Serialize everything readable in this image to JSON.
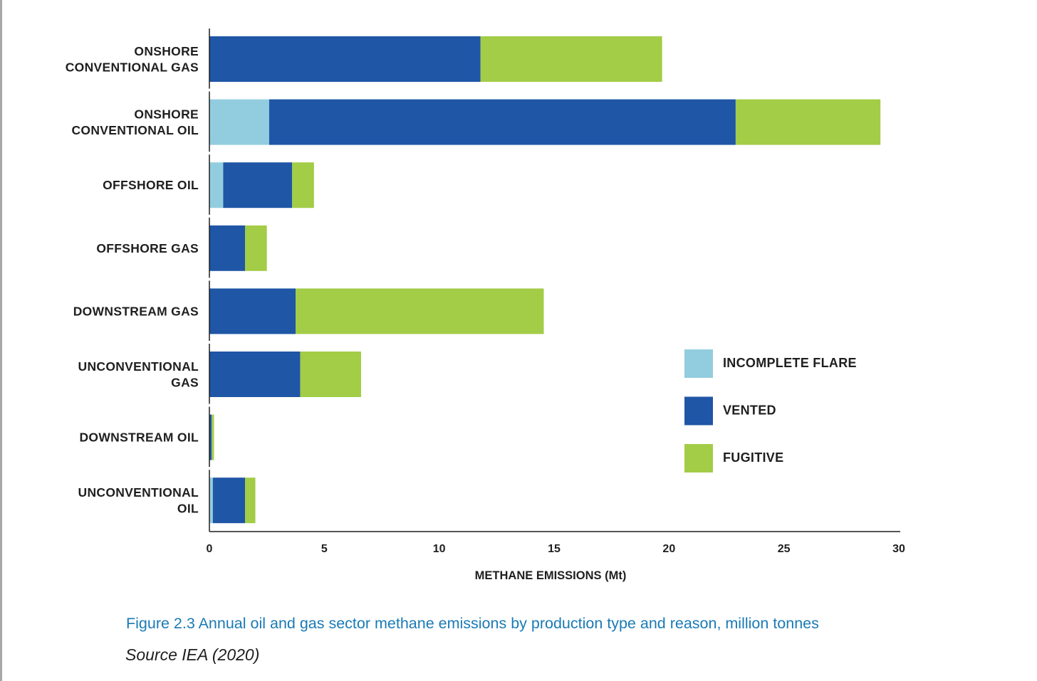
{
  "chart_data": {
    "type": "bar",
    "orientation": "horizontal",
    "stacked": true,
    "categories": [
      [
        "ONSHORE",
        "CONVENTIONAL GAS"
      ],
      [
        "ONSHORE",
        "CONVENTIONAL OIL"
      ],
      [
        "OFFSHORE OIL"
      ],
      [
        "OFFSHORE GAS"
      ],
      [
        "DOWNSTREAM GAS"
      ],
      [
        "UNCONVENTIONAL",
        "GAS"
      ],
      [
        "DOWNSTREAM OIL"
      ],
      [
        "UNCONVENTIONAL",
        "OIL"
      ]
    ],
    "series": [
      {
        "name": "INCOMPLETE FLARE",
        "color": "#92cddf",
        "values": [
          0,
          2.6,
          0.6,
          0,
          0,
          0,
          0,
          0.15
        ]
      },
      {
        "name": "VENTED",
        "color": "#1f56a6",
        "values": [
          11.8,
          20.3,
          3.0,
          1.55,
          3.75,
          3.95,
          0.1,
          1.4
        ]
      },
      {
        "name": "FUGITIVE",
        "color": "#a3cc47",
        "values": [
          7.9,
          6.3,
          0.95,
          0.95,
          10.8,
          2.65,
          0.1,
          0.45
        ]
      }
    ],
    "xlim": [
      0,
      30
    ],
    "xticks": [
      "0",
      "5",
      "10",
      "15",
      "20",
      "25",
      "30"
    ],
    "xlabel": "METHANE EMISSIONS (Mt)",
    "ylabel": "",
    "legend_position": "right"
  },
  "caption": "Figure 2.3 Annual oil and gas sector methane emissions by production type and reason, million tonnes",
  "source": "Source IEA (2020)"
}
